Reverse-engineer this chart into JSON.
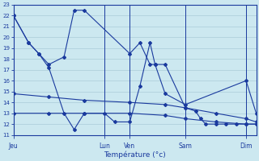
{
  "xlabel": "Température (°c)",
  "bg_color": "#cce8f0",
  "grid_color": "#aaccd8",
  "line_color": "#1a3a9e",
  "ylim": [
    11,
    23
  ],
  "xlim": [
    0,
    48
  ],
  "yticks": [
    11,
    12,
    13,
    14,
    15,
    16,
    17,
    18,
    19,
    20,
    21,
    22,
    23
  ],
  "day_labels": [
    "Jeu",
    "Lun",
    "Ven",
    "Sam",
    "Dim"
  ],
  "day_x": [
    0,
    18,
    23,
    34,
    46
  ],
  "vlines": [
    18,
    23,
    34,
    46
  ],
  "series1_x": [
    0,
    3,
    5,
    7,
    10,
    12,
    14,
    23,
    25,
    27,
    28,
    30,
    34,
    46,
    48
  ],
  "series1_y": [
    22,
    19.5,
    18.5,
    17.5,
    18.2,
    22.5,
    22.5,
    18.5,
    19.5,
    17.5,
    17.5,
    14.8,
    13.8,
    16.0,
    13.0
  ],
  "series2_x": [
    0,
    3,
    5,
    7,
    10,
    12,
    14,
    18,
    20,
    23,
    25,
    27,
    28,
    30,
    34,
    36,
    37,
    38,
    40,
    42,
    44,
    46,
    48
  ],
  "series2_y": [
    22,
    19.5,
    18.5,
    17.2,
    13.0,
    11.5,
    13.0,
    13.0,
    12.2,
    12.2,
    15.5,
    19.5,
    17.5,
    17.5,
    13.5,
    13.2,
    12.5,
    12.0,
    12.0,
    12.0,
    12.0,
    12.0,
    12.0
  ],
  "series3_x": [
    0,
    7,
    14,
    23,
    30,
    34,
    40,
    46,
    48
  ],
  "series3_y": [
    14.8,
    14.5,
    14.2,
    14.0,
    13.8,
    13.5,
    13.0,
    12.5,
    12.2
  ],
  "series4_x": [
    0,
    7,
    14,
    23,
    30,
    34,
    40,
    46,
    48
  ],
  "series4_y": [
    13.0,
    13.0,
    13.0,
    13.0,
    12.8,
    12.5,
    12.2,
    12.0,
    12.0
  ]
}
